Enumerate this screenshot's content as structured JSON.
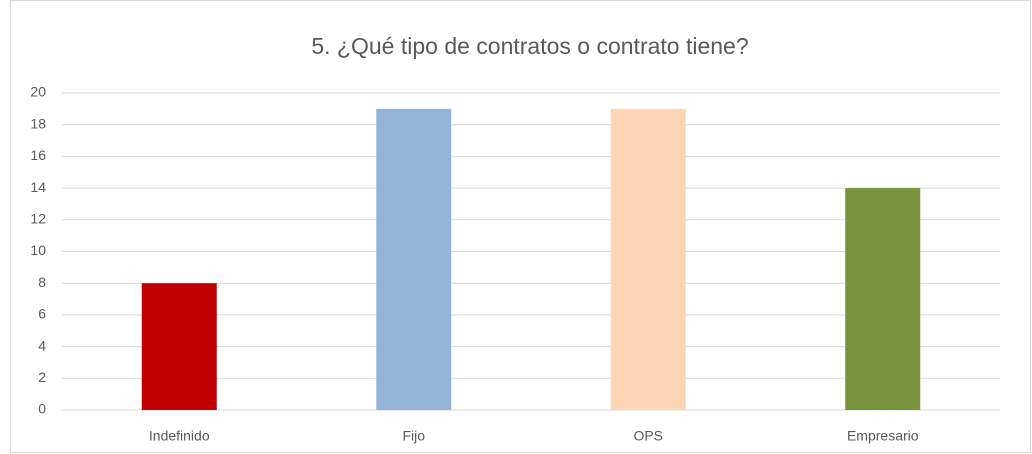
{
  "chart_data": {
    "type": "bar",
    "title": "5. ¿Qué tipo de contratos o contrato tiene?",
    "categories": [
      "Indefinido",
      "Fijo",
      "OPS",
      "Empresario"
    ],
    "values": [
      8,
      19,
      19,
      14
    ],
    "colors": [
      "#c00000",
      "#95b3d7",
      "#fcd5b5",
      "#77933c"
    ],
    "ylim": [
      0,
      20
    ],
    "yticks": [
      0,
      2,
      4,
      6,
      8,
      10,
      12,
      14,
      16,
      18,
      20
    ],
    "grid": true
  }
}
